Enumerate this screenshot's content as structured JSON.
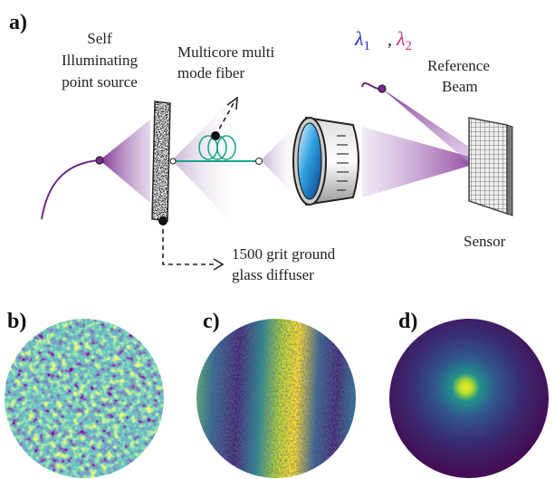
{
  "panels": {
    "a": {
      "label": "a)",
      "source_label": [
        "Self",
        "Illuminating",
        "point source"
      ],
      "fiber_label": [
        "Multicore multi",
        "mode fiber"
      ],
      "wavelength_1": {
        "symbol": "λ",
        "index": "1"
      },
      "separator": ",",
      "wavelength_2": {
        "symbol": "λ",
        "index": "2"
      },
      "reference_label": [
        "Reference",
        "Beam"
      ],
      "sensor_label": "Sensor",
      "diffuser_label": [
        "1500 grit ground",
        "glass diffuser"
      ]
    },
    "b": {
      "label": "b)"
    },
    "c": {
      "label": "c)"
    },
    "d": {
      "label": "d)"
    }
  }
}
